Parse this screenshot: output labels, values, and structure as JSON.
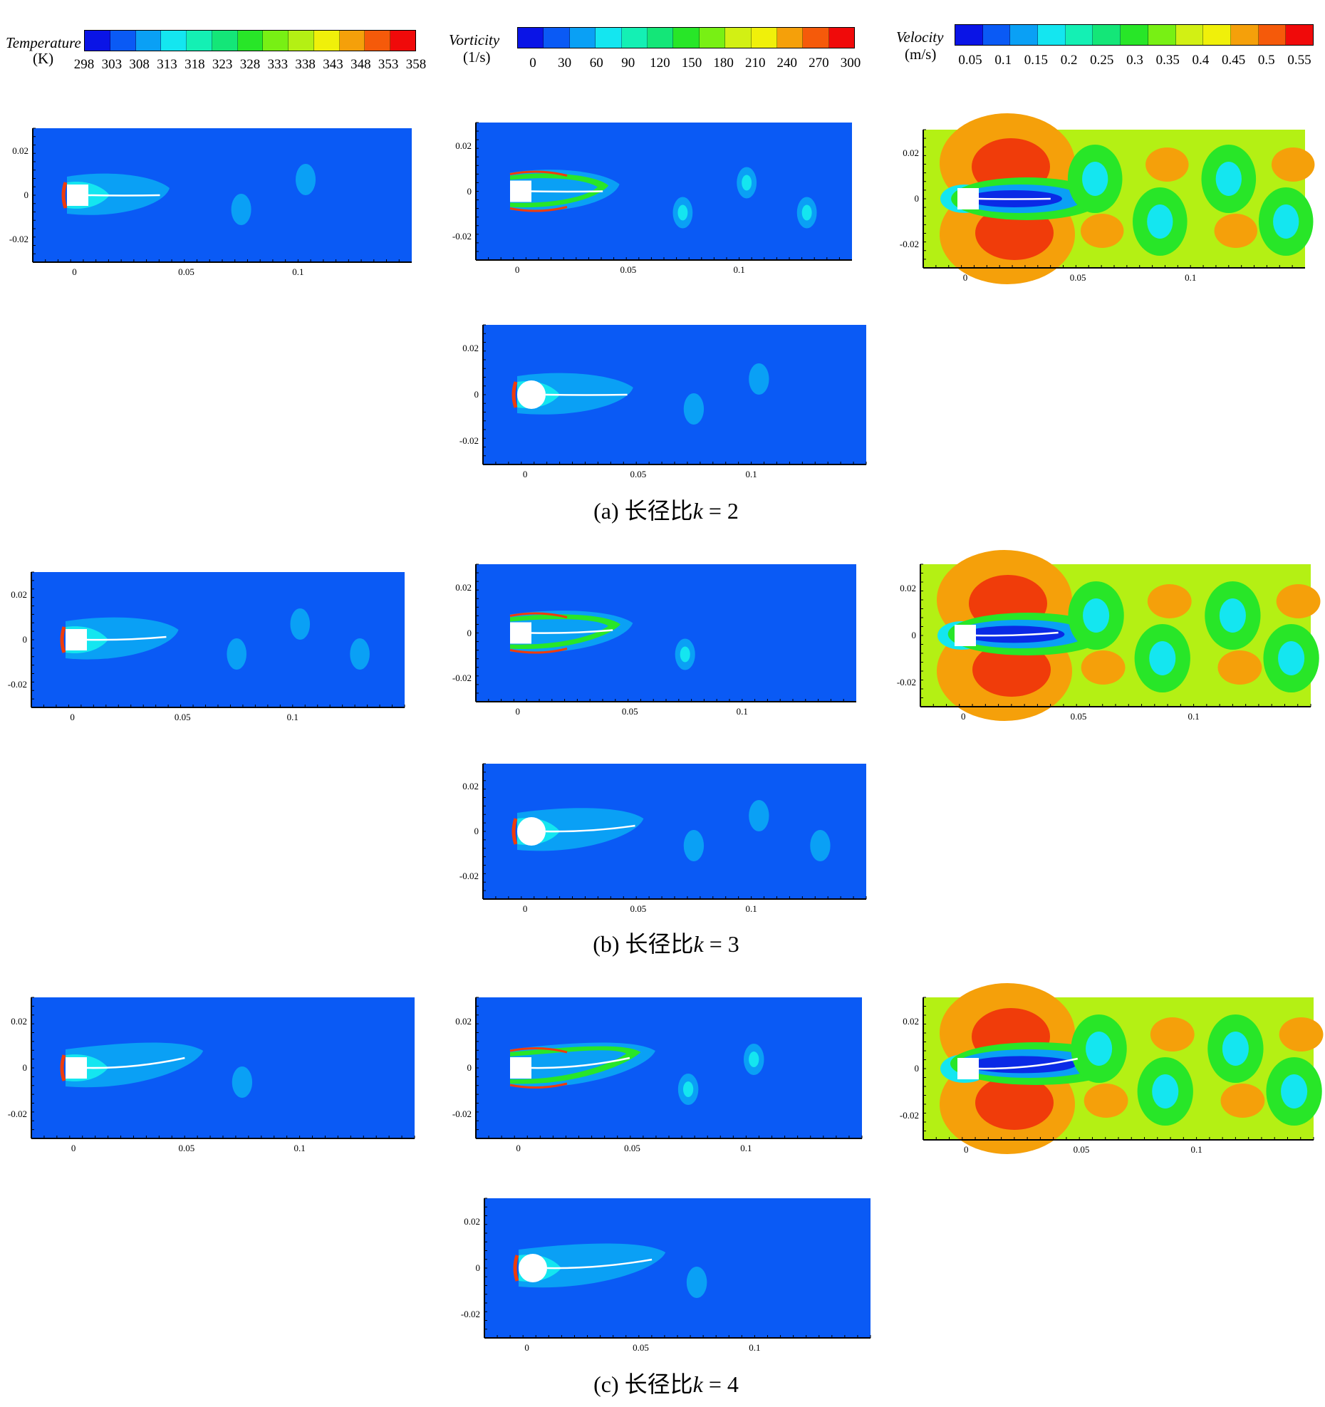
{
  "colorbars": {
    "temperature": {
      "title": "Temperature",
      "unit": "(K)",
      "ticks": [
        "298",
        "303",
        "308",
        "313",
        "318",
        "323",
        "328",
        "333",
        "338",
        "343",
        "348",
        "353",
        "358"
      ],
      "colors": [
        "#0a14e6",
        "#0a5af5",
        "#0aa0f5",
        "#14e6f0",
        "#14f0b4",
        "#14e678",
        "#28e628",
        "#78f014",
        "#b4f014",
        "#f0f00a",
        "#f5a00a",
        "#f55a0a",
        "#f00a0a"
      ]
    },
    "vorticity": {
      "title": "Vorticity",
      "unit": "(1/s)",
      "ticks": [
        "0",
        "30",
        "60",
        "90",
        "120",
        "150",
        "180",
        "210",
        "240",
        "270",
        "300"
      ],
      "colors": [
        "#0a14e6",
        "#0a5af5",
        "#0aa0f5",
        "#14e6f0",
        "#14f0b4",
        "#14e678",
        "#28e628",
        "#78f014",
        "#d2f014",
        "#f0f00a",
        "#f5a00a",
        "#f55a0a",
        "#f00a0a"
      ]
    },
    "velocity": {
      "title": "Velocity",
      "unit": "(m/s)",
      "ticks": [
        "0.05",
        "0.1",
        "0.15",
        "0.2",
        "0.25",
        "0.3",
        "0.35",
        "0.4",
        "0.45",
        "0.5",
        "0.55"
      ],
      "colors": [
        "#0a14e6",
        "#0a5af5",
        "#0aa0f5",
        "#14e6f0",
        "#14f0b4",
        "#14e678",
        "#28e628",
        "#78f014",
        "#d2f014",
        "#f0f00a",
        "#f5a00a",
        "#f55a0a",
        "#f00a0a"
      ]
    }
  },
  "axes": {
    "x_ticks": [
      "0",
      "0.05",
      "0.1"
    ],
    "y_ticks": [
      "0.02",
      "0",
      "-0.02"
    ]
  },
  "captions": {
    "a": {
      "prefix": "(a) 长径比",
      "var": "k",
      "suffix": " = 2"
    },
    "b": {
      "prefix": "(b) 长径比",
      "var": "k",
      "suffix": " = 3"
    },
    "c": {
      "prefix": "(c) 长径比",
      "var": "k",
      "suffix": " = 4"
    }
  },
  "field_colors": {
    "bg_blue": "#0a5af5",
    "light_blue": "#0aa0f5",
    "cyan": "#14e6f0",
    "green": "#28e628",
    "yellowgreen": "#b4f014",
    "yellow": "#e6f00a",
    "orange": "#f5a00a",
    "red": "#f03c0a"
  }
}
